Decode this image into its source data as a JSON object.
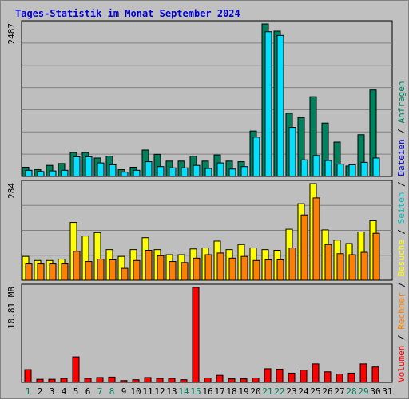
{
  "title": "Tages-Statistik im Monat September 2024",
  "colors": {
    "background": "#c0c0c0",
    "plot_bg": "#bebebe",
    "title": "#0000cc",
    "grid": "#808080",
    "hits": "#00805c",
    "files": "#00e0ff",
    "pages": "#00c0c0",
    "visits": "#ffff00",
    "sites": "#ff8000",
    "volume": "#ff0000",
    "weekend_day": "#00805c",
    "weekday": "#000000"
  },
  "chart_data": [
    {
      "type": "bar",
      "panel": "top",
      "y_max_label": "2487",
      "ylim": [
        0,
        2487
      ],
      "grid": true,
      "legend": [
        {
          "name": "Anfragen",
          "color": "#00805c"
        },
        {
          "name": "Dateien",
          "color": "#0000cc"
        }
      ],
      "categories": [
        "1",
        "2",
        "3",
        "4",
        "5",
        "6",
        "7",
        "8",
        "9",
        "10",
        "11",
        "12",
        "13",
        "14",
        "15",
        "16",
        "17",
        "18",
        "19",
        "20",
        "21",
        "22",
        "23",
        "24",
        "25",
        "26",
        "27",
        "28",
        "29",
        "30"
      ],
      "series": [
        {
          "name": "Anfragen",
          "values": [
            150,
            110,
            180,
            210,
            390,
            390,
            300,
            330,
            110,
            150,
            430,
            360,
            250,
            250,
            330,
            250,
            350,
            250,
            240,
            740,
            2487,
            2370,
            1030,
            960,
            1300,
            870,
            560,
            170,
            680,
            1410
          ]
        },
        {
          "name": "Dateien",
          "values": [
            100,
            80,
            90,
            100,
            320,
            320,
            220,
            190,
            70,
            100,
            240,
            160,
            140,
            140,
            180,
            130,
            220,
            120,
            160,
            640,
            2360,
            2300,
            800,
            270,
            340,
            260,
            200,
            190,
            230,
            300
          ]
        }
      ]
    },
    {
      "type": "bar",
      "panel": "middle",
      "y_max_label": "284",
      "ylim": [
        0,
        284
      ],
      "grid": true,
      "legend": [
        {
          "name": "Seiten",
          "color": "#00c0c0"
        },
        {
          "name": "Besuche",
          "color": "#ffff00"
        },
        {
          "name": "Rechner",
          "color": "#ff8000"
        }
      ],
      "categories": [
        "1",
        "2",
        "3",
        "4",
        "5",
        "6",
        "7",
        "8",
        "9",
        "10",
        "11",
        "12",
        "13",
        "14",
        "15",
        "16",
        "17",
        "18",
        "19",
        "20",
        "21",
        "22",
        "23",
        "24",
        "25",
        "26",
        "27",
        "28",
        "29",
        "30"
      ],
      "series": [
        {
          "name": "Besuche",
          "values": [
            70,
            58,
            58,
            62,
            170,
            130,
            140,
            90,
            70,
            90,
            125,
            90,
            75,
            75,
            92,
            95,
            115,
            90,
            105,
            95,
            90,
            88,
            150,
            225,
            284,
            148,
            118,
            108,
            142,
            175
          ]
        },
        {
          "name": "Rechner",
          "values": [
            48,
            48,
            48,
            48,
            85,
            55,
            62,
            60,
            35,
            58,
            88,
            72,
            55,
            52,
            65,
            75,
            80,
            65,
            70,
            58,
            60,
            60,
            95,
            192,
            242,
            105,
            78,
            75,
            82,
            138
          ]
        }
      ]
    },
    {
      "type": "bar",
      "panel": "bottom",
      "y_max_label": "10.81 MB",
      "ylabel": "Volumen",
      "ylim": [
        0,
        10.81
      ],
      "grid": false,
      "legend": [
        {
          "name": "Volumen",
          "color": "#ff0000"
        }
      ],
      "categories": [
        "1",
        "2",
        "3",
        "4",
        "5",
        "6",
        "7",
        "8",
        "9",
        "10",
        "11",
        "12",
        "13",
        "14",
        "15",
        "16",
        "17",
        "18",
        "19",
        "20",
        "21",
        "22",
        "23",
        "24",
        "25",
        "26",
        "27",
        "28",
        "29",
        "30"
      ],
      "series": [
        {
          "name": "Volumen",
          "values": [
            1.45,
            0.35,
            0.35,
            0.45,
            2.9,
            0.45,
            0.55,
            0.6,
            0.2,
            0.3,
            0.55,
            0.45,
            0.45,
            0.3,
            10.81,
            0.5,
            0.8,
            0.4,
            0.4,
            0.5,
            1.55,
            1.5,
            1.05,
            1.4,
            2.1,
            1.2,
            0.95,
            1.05,
            2.1,
            1.75
          ]
        }
      ]
    }
  ],
  "x_labels": [
    "1",
    "2",
    "3",
    "4",
    "5",
    "6",
    "7",
    "8",
    "9",
    "10",
    "11",
    "12",
    "13",
    "14",
    "15",
    "16",
    "17",
    "18",
    "19",
    "20",
    "21",
    "22",
    "23",
    "24",
    "25",
    "26",
    "27",
    "28",
    "29",
    "30",
    "31"
  ],
  "weekend_days": [
    "1",
    "7",
    "8",
    "14",
    "15",
    "21",
    "22",
    "28",
    "29"
  ],
  "right_legend_separator": "/"
}
